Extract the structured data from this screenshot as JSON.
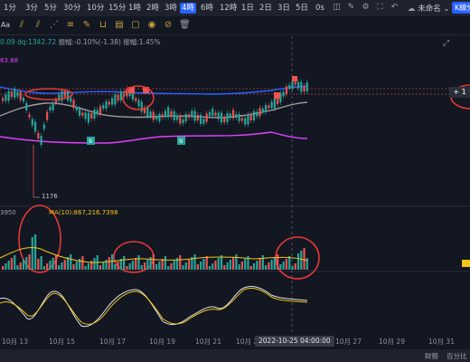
{
  "toolbar": {
    "timeframes": [
      "1分",
      "3分",
      "5分",
      "30分",
      "10分",
      "15分",
      "1時",
      "2時",
      "3時",
      "4時",
      "6時",
      "12時",
      "1日",
      "2日",
      "3日",
      "5日",
      "0s"
    ],
    "active_timeframe": "4時",
    "unnamed_label": "未命名",
    "kline_button": "K線分"
  },
  "legend": {
    "line1_prefix": "0.09",
    "line1_value": "dq:1342.72",
    "line1_rest": "振幅:-0.10%(-1.38)  振幅:1.45%",
    "line2": "63.88"
  },
  "price_panel": {
    "low_label": "1176",
    "td_marker_1": "9",
    "td_marker_2": "9"
  },
  "volume_panel": {
    "label_left": "3950",
    "ma_label": "MA(10):867,216.7398"
  },
  "date_axis": {
    "labels": [
      "10月 13",
      "10月 15",
      "10月 17",
      "10月 19",
      "10月 21",
      "10月 23",
      "10月 27",
      "10月 29",
      "10月 31"
    ],
    "crosshair_label": "2022-10-25 04:00:00"
  },
  "bottom_bar": {
    "left_text": "財務",
    "right_text": "百分比"
  },
  "right_price_label": "1",
  "colors": {
    "up": "#26a69a",
    "down": "#ef5350",
    "annotation": "#e53935",
    "ma_blue": "#2962ff",
    "ma_gray": "#9e9e9e",
    "ma_pink": "#e040fb",
    "volume_ma": "#f0c419"
  }
}
